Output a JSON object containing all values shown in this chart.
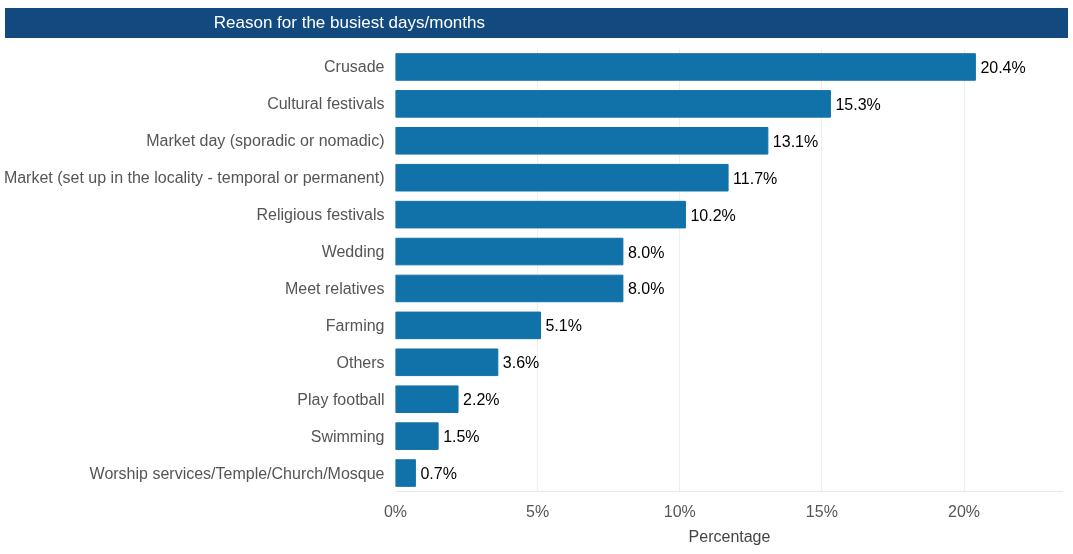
{
  "chart_data": {
    "type": "bar",
    "orientation": "horizontal",
    "title": "Reason for the busiest days/months",
    "xlabel": "Percentage",
    "categories": [
      "Crusade",
      "Cultural festivals",
      "Market day (sporadic or nomadic)",
      "Market (set up in the locality - temporal or permanent)",
      "Religious festivals",
      "Wedding",
      "Meet relatives",
      "Farming",
      "Others",
      "Play football",
      "Swimming",
      "Worship services/Temple/Church/Mosque"
    ],
    "values": [
      20.4,
      15.3,
      13.1,
      11.7,
      10.2,
      8.0,
      8.0,
      5.1,
      3.6,
      2.2,
      1.5,
      0.7
    ],
    "value_labels": [
      "20.4%",
      "15.3%",
      "13.1%",
      "11.7%",
      "10.2%",
      "8.0%",
      "8.0%",
      "5.1%",
      "3.6%",
      "2.2%",
      "1.5%",
      "0.7%"
    ],
    "color": "#1172a9",
    "xlim": [
      0,
      23.5
    ],
    "xticks": [
      {
        "value": 0,
        "label": "0%"
      },
      {
        "value": 5,
        "label": "5%"
      },
      {
        "value": 10,
        "label": "10%"
      },
      {
        "value": 15,
        "label": "15%"
      },
      {
        "value": 20,
        "label": "20%"
      }
    ],
    "grid": "x"
  }
}
